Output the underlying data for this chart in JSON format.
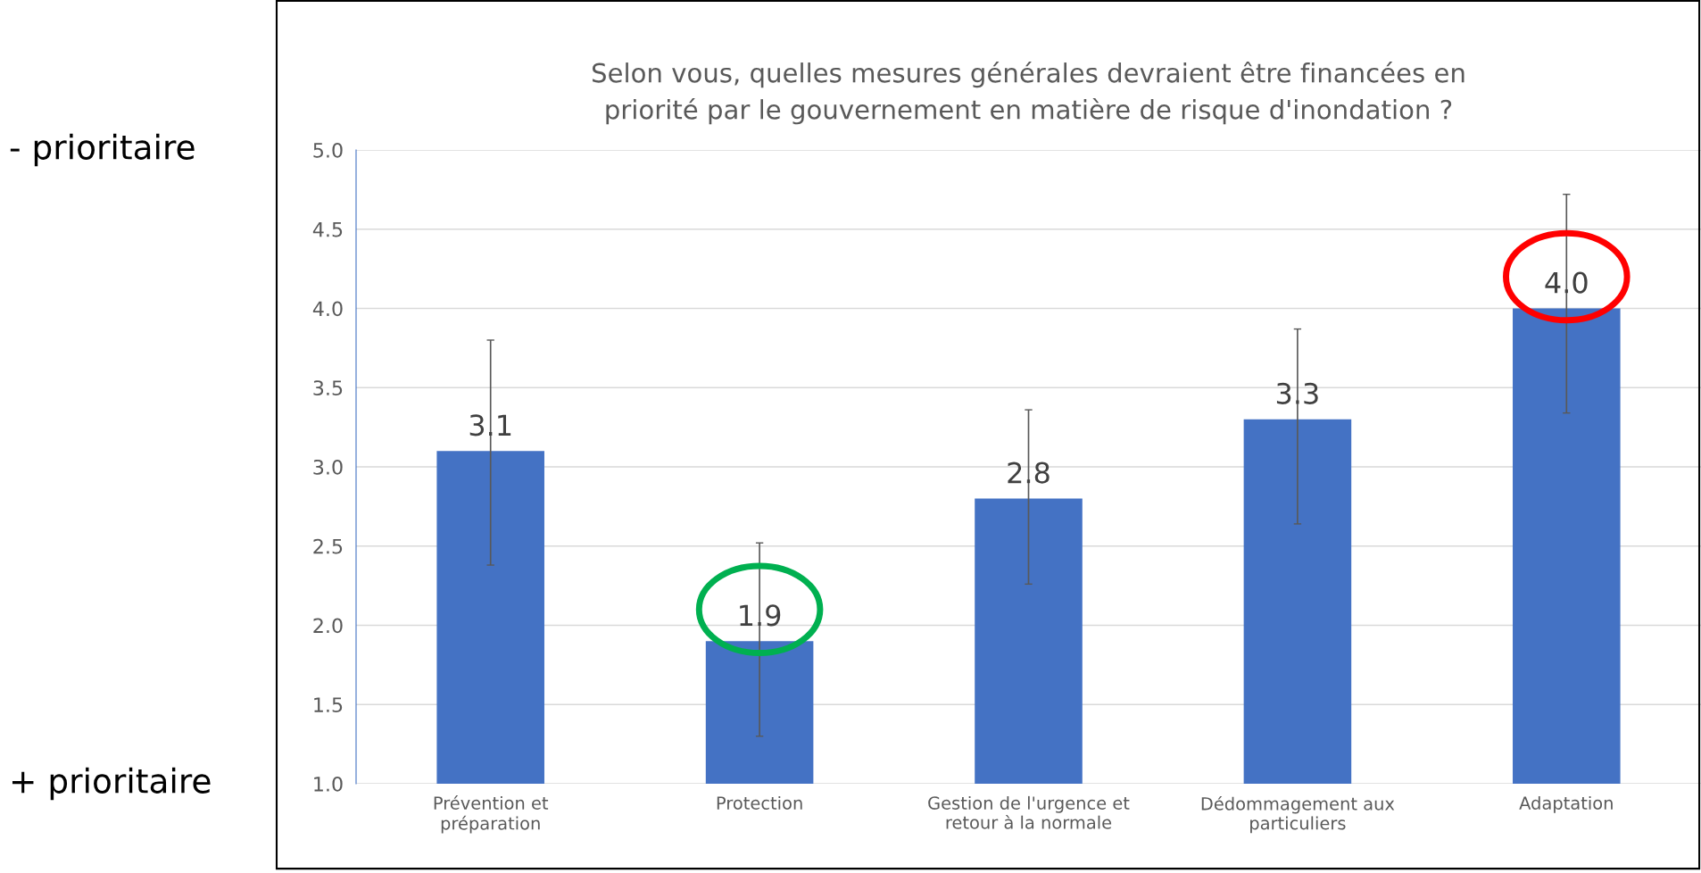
{
  "chart_data": {
    "type": "bar",
    "title": "Selon vous, quelles mesures générales devraient être financées en\npriorité par le gouvernement en matière de risque d'inondation ?",
    "categories": [
      "Prévention et\npréparation",
      "Protection",
      "Gestion de l'urgence et\nretour à la normale",
      "Dédommagement aux\nparticuliers",
      "Adaptation"
    ],
    "values": [
      3.1,
      1.9,
      2.8,
      3.3,
      4.0
    ],
    "color": "#4472c4",
    "errors": [
      [
        2.38,
        3.8
      ],
      [
        1.3,
        2.52
      ],
      [
        2.26,
        3.36
      ],
      [
        2.64,
        3.87
      ],
      [
        3.34,
        4.72
      ]
    ],
    "ylim": [
      1.0,
      5.0
    ],
    "yticks": [
      {
        "value": 1.0,
        "label": "1.0"
      },
      {
        "value": 1.5,
        "label": "1.5"
      },
      {
        "value": 2.0,
        "label": "2.0"
      },
      {
        "value": 2.5,
        "label": "2.5"
      },
      {
        "value": 3.0,
        "label": "3.0"
      },
      {
        "value": 3.5,
        "label": "3.5"
      },
      {
        "value": 4.0,
        "label": "4.0"
      },
      {
        "value": 4.5,
        "label": "4.5"
      },
      {
        "value": 5.0,
        "label": "5.0"
      }
    ],
    "grid": "y",
    "value_labels": [
      "3.1",
      "1.9",
      "2.8",
      "3.3",
      "4.0"
    ],
    "annotations": [
      "- prioritaire",
      "+ prioritaire"
    ]
  }
}
